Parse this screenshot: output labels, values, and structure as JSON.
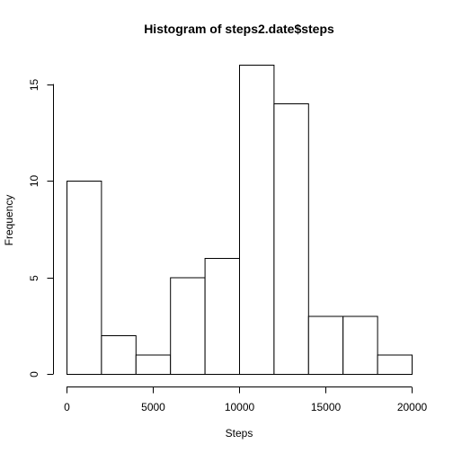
{
  "chart_data": {
    "type": "bar",
    "title": "Histogram of steps2.date$steps",
    "xlabel": "Steps",
    "ylabel": "Frequency",
    "bins": [
      {
        "start": 0,
        "end": 2000,
        "count": 10
      },
      {
        "start": 2000,
        "end": 4000,
        "count": 2
      },
      {
        "start": 4000,
        "end": 6000,
        "count": 1
      },
      {
        "start": 6000,
        "end": 8000,
        "count": 5
      },
      {
        "start": 8000,
        "end": 10000,
        "count": 6
      },
      {
        "start": 10000,
        "end": 12000,
        "count": 16
      },
      {
        "start": 12000,
        "end": 14000,
        "count": 14
      },
      {
        "start": 14000,
        "end": 16000,
        "count": 3
      },
      {
        "start": 16000,
        "end": 18000,
        "count": 3
      },
      {
        "start": 18000,
        "end": 20000,
        "count": 1
      }
    ],
    "xlim": [
      0,
      20000
    ],
    "ylim": [
      0,
      16
    ],
    "xticks": [
      0,
      5000,
      10000,
      15000,
      20000
    ],
    "xtick_labels": [
      "0",
      "5000",
      "10000",
      "15000",
      "20000"
    ],
    "yticks": [
      0,
      5,
      10,
      15
    ],
    "ytick_labels": [
      "0",
      "5",
      "10",
      "15"
    ],
    "grid": false,
    "legend": "none"
  }
}
